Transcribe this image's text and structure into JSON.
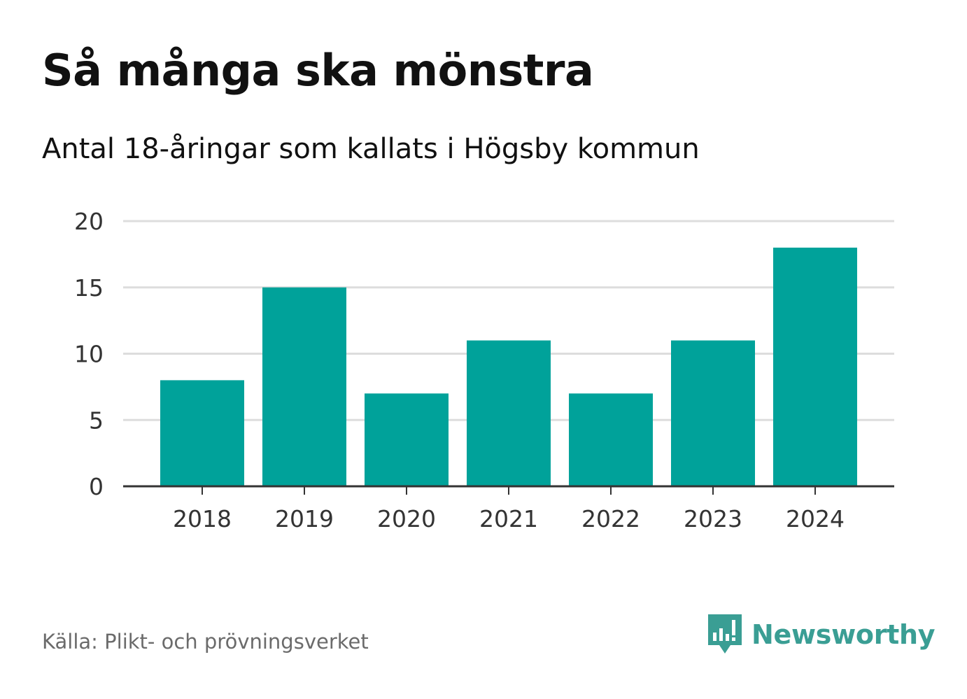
{
  "title": "Så många ska mönstra",
  "subtitle": "Antal 18-åringar som kallats i Högsby kommun",
  "source": "Källa: Plikt- och prövningsverket",
  "brand": {
    "name": "Newsworthy",
    "logo_icon": "newsworthy-logo-icon",
    "color": "#3a9e94"
  },
  "colors": {
    "bar": "#00a29a",
    "grid": "#dddddd",
    "axis": "#333333",
    "tick_text": "#333333"
  },
  "chart_data": {
    "type": "bar",
    "title": "Så många ska mönstra",
    "subtitle": "Antal 18-åringar som kallats i Högsby kommun",
    "categories": [
      "2018",
      "2019",
      "2020",
      "2021",
      "2022",
      "2023",
      "2024"
    ],
    "values": [
      8,
      15,
      7,
      11,
      7,
      11,
      18
    ],
    "xlabel": "",
    "ylabel": "",
    "ylim": [
      0,
      20
    ],
    "yticks": [
      0,
      5,
      10,
      15,
      20
    ],
    "ytick_labels": [
      "0",
      "5",
      "10",
      "15",
      "20"
    ],
    "grid": true,
    "legend": "none"
  }
}
